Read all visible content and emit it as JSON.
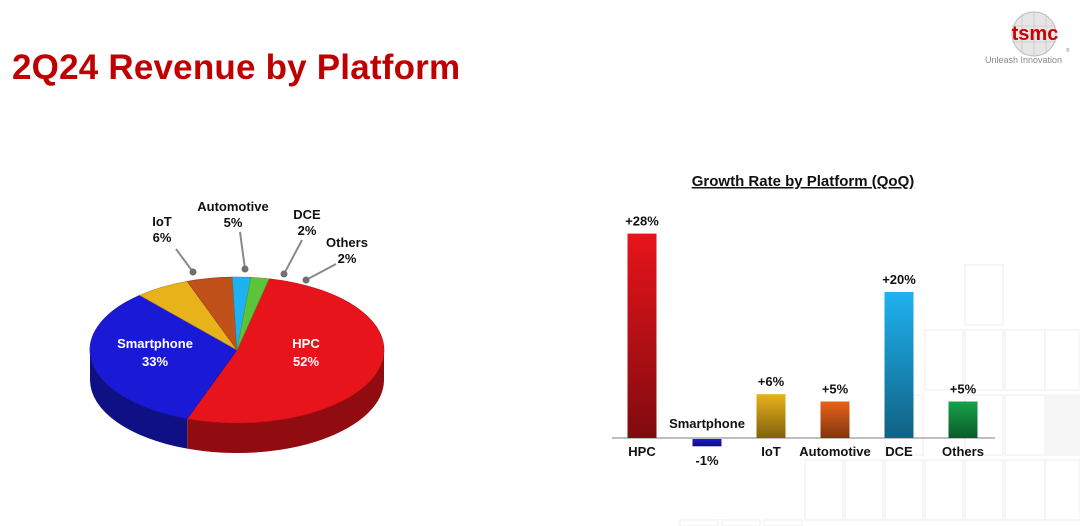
{
  "slide": {
    "title": "2Q24 Revenue by Platform",
    "logo_text": "tsmc",
    "tagline": "Unleash Innovation"
  },
  "colors": {
    "title": "#c00000",
    "hpc": "#e8141b",
    "smartphone": "#1a1ad6",
    "iot": "#e8b21a",
    "automotive": "#c0511a",
    "dce": "#1fb2f0",
    "others": "#5cc43a"
  },
  "chart_data": [
    {
      "type": "pie",
      "title": "",
      "slices": [
        {
          "name": "HPC",
          "value": 52,
          "label": "52%",
          "color": "#e8141b"
        },
        {
          "name": "Smartphone",
          "value": 33,
          "label": "33%",
          "color": "#1a1ad6"
        },
        {
          "name": "IoT",
          "value": 6,
          "label": "6%",
          "color": "#e8b21a"
        },
        {
          "name": "Automotive",
          "value": 5,
          "label": "5%",
          "color": "#c0511a"
        },
        {
          "name": "DCE",
          "value": 2,
          "label": "2%",
          "color": "#1fb2f0"
        },
        {
          "name": "Others",
          "value": 2,
          "label": "2%",
          "color": "#5cc43a"
        }
      ]
    },
    {
      "type": "bar",
      "title": "Growth Rate by Platform (QoQ)",
      "xlabel": "",
      "ylabel": "",
      "unit": "%",
      "categories": [
        "HPC",
        "Smartphone",
        "IoT",
        "Automotive",
        "DCE",
        "Others"
      ],
      "values": [
        28,
        -1,
        6,
        5,
        20,
        5
      ],
      "value_labels": [
        "+28%",
        "-1%",
        "+6%",
        "+5%",
        "+20%",
        "+5%"
      ],
      "colors": [
        "#e8141b",
        "#1a1ad6",
        "#e8b21a",
        "#e8621a",
        "#1fb2f0",
        "#16a34a"
      ],
      "ylim": [
        -1,
        28
      ],
      "grid": false,
      "legend": "none"
    }
  ]
}
